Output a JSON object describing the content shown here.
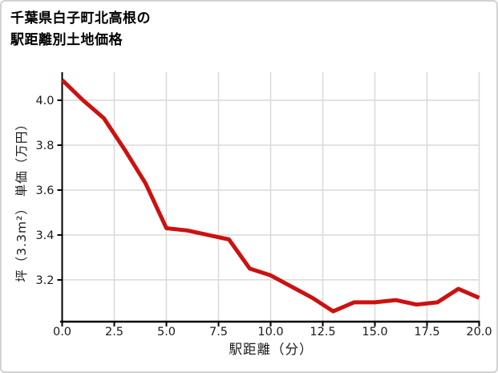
{
  "title": {
    "lines": [
      "千葉県白子町北高根の",
      "駅距離別土地価格"
    ]
  },
  "chart_data": {
    "type": "line",
    "title": "千葉県白子町北高根の駅距離別土地価格",
    "xlabel": "駅距離（分）",
    "ylabel": "坪（3.3m²） 単価（万円）",
    "x": [
      0,
      1,
      2,
      3,
      4,
      5,
      6,
      7,
      8,
      9,
      10,
      11,
      12,
      13,
      14,
      15,
      16,
      17,
      18,
      19,
      20
    ],
    "y": [
      4.09,
      4.0,
      3.92,
      3.78,
      3.63,
      3.43,
      3.42,
      3.4,
      3.38,
      3.25,
      3.22,
      3.17,
      3.12,
      3.06,
      3.1,
      3.1,
      3.11,
      3.09,
      3.1,
      3.16,
      3.12
    ],
    "xlim": [
      0,
      20
    ],
    "ylim": [
      3.014,
      4.125
    ],
    "xticks": {
      "values": [
        0,
        2.5,
        5,
        7.5,
        10,
        12.5,
        15,
        17.5,
        20
      ],
      "labels": [
        "0.0",
        "2.5",
        "5.0",
        "7.5",
        "10.0",
        "12.5",
        "15.0",
        "17.5",
        "20.0"
      ]
    },
    "yticks": {
      "values": [
        4.0,
        3.8,
        3.6,
        3.4,
        3.2
      ],
      "labels": [
        "4.0",
        "3.8",
        "3.6",
        "3.4",
        "3.2"
      ]
    },
    "grid": true,
    "legend": false,
    "line_color": "#cc1111",
    "line_width": 5
  },
  "colors": {
    "grid": "#d9d9d9",
    "axis": "#000000",
    "tick_label": "#1a1a1a",
    "background": "#ffffff",
    "border": "#d2d2d2"
  }
}
